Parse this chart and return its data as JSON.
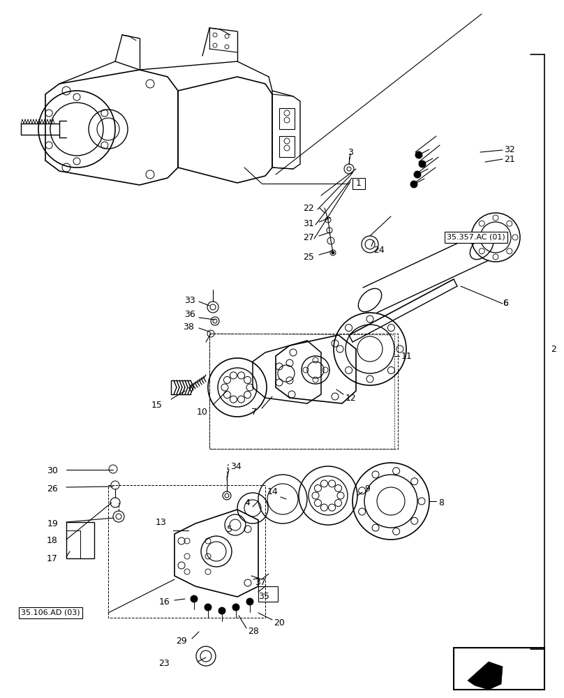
{
  "bg_color": "#ffffff",
  "line_color": "#000000",
  "fig_width": 8.08,
  "fig_height": 10.0,
  "dpi": 100
}
